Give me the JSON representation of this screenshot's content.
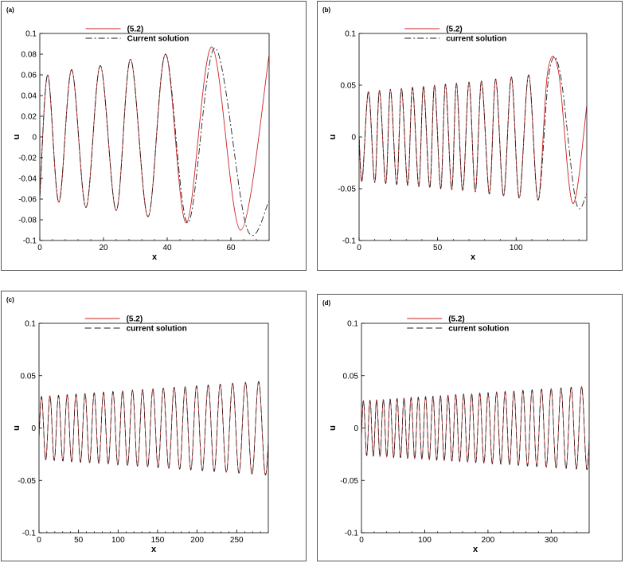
{
  "chart_data": [
    {
      "panel_label": "(a)",
      "type": "line",
      "xlabel": "x",
      "ylabel": "u",
      "xlim": [
        0,
        72
      ],
      "ylim": [
        -0.1,
        0.1
      ],
      "xticks": [
        "0",
        "20",
        "40",
        "60"
      ],
      "xtick_values": [
        0,
        20,
        40,
        60
      ],
      "yticks": [
        "0.1",
        "0.08",
        "0.06",
        "0.04",
        "0.02",
        "0",
        "-0.02",
        "-0.04",
        "-0.06",
        "-0.08",
        "-0.1"
      ],
      "ytick_values": [
        0.1,
        0.08,
        0.06,
        0.04,
        0.02,
        0,
        -0.02,
        -0.04,
        -0.06,
        -0.08,
        -0.1
      ],
      "legend_position": "top-center",
      "legend": [
        "(5.2)",
        "Current solution"
      ],
      "series": [
        {
          "name": "(5.2)",
          "color": "#cc2222",
          "style": "solid",
          "x": [
            0,
            2.5,
            6,
            10,
            14.5,
            19,
            24,
            28.5,
            34,
            39.5,
            46,
            54,
            63,
            72
          ],
          "y": [
            -0.058,
            0.06,
            -0.063,
            0.065,
            -0.068,
            0.069,
            -0.071,
            0.075,
            -0.077,
            0.08,
            -0.083,
            0.087,
            -0.09,
            0.079
          ]
        },
        {
          "name": "Current solution",
          "color": "#222222",
          "style": "dashdot",
          "x": [
            0,
            2.5,
            6,
            10,
            14.5,
            19,
            24,
            28.5,
            34,
            39.5,
            46.5,
            55,
            65,
            72
          ],
          "y": [
            -0.058,
            0.06,
            -0.063,
            0.065,
            -0.068,
            0.069,
            -0.071,
            0.075,
            -0.077,
            0.08,
            -0.083,
            0.086,
            -0.088,
            -0.062
          ]
        }
      ]
    },
    {
      "panel_label": "(b)",
      "type": "line",
      "xlabel": "x",
      "ylabel": "u",
      "xlim": [
        0,
        145
      ],
      "ylim": [
        -0.1,
        0.1
      ],
      "xticks": [
        "0",
        "50",
        "100"
      ],
      "xtick_values": [
        0,
        50,
        100
      ],
      "yticks": [
        "0.1",
        "0.05",
        "0",
        "-0.05",
        "-0.1"
      ],
      "ytick_values": [
        0.1,
        0.05,
        0,
        -0.05,
        -0.1
      ],
      "legend_position": "top-center",
      "legend": [
        "(5.2)",
        "current solution"
      ],
      "series": [
        {
          "name": "(5.2)",
          "color": "#cc2222",
          "style": "solid",
          "x": [
            0,
            2,
            6,
            10,
            13,
            17,
            20,
            24,
            27,
            31,
            34,
            38,
            41,
            45,
            48,
            52,
            55,
            59,
            62,
            66,
            70,
            74,
            78,
            83,
            87,
            92,
            97,
            102,
            108,
            114,
            120,
            127,
            136,
            145
          ],
          "y": [
            0.0,
            -0.042,
            0.044,
            -0.044,
            0.045,
            -0.045,
            0.046,
            -0.046,
            0.047,
            -0.047,
            0.048,
            -0.048,
            0.049,
            -0.049,
            0.05,
            -0.05,
            0.051,
            -0.051,
            0.052,
            -0.052,
            0.053,
            -0.053,
            0.054,
            -0.055,
            0.056,
            -0.057,
            0.058,
            -0.059,
            0.06,
            -0.061,
            0.062,
            0.063,
            -0.064,
            0.03
          ]
        },
        {
          "name": "current solution",
          "color": "#222222",
          "style": "dashdot",
          "x": [
            0,
            2,
            6,
            10,
            13,
            17,
            20,
            24,
            27,
            31,
            34,
            38,
            41,
            45,
            48,
            52,
            55,
            59,
            62,
            66,
            70,
            74,
            78,
            83,
            87,
            92,
            97,
            102,
            108,
            114,
            121,
            128,
            138,
            145
          ],
          "y": [
            0.0,
            -0.042,
            0.044,
            -0.044,
            0.045,
            -0.045,
            0.046,
            -0.046,
            0.047,
            -0.047,
            0.048,
            -0.048,
            0.049,
            -0.049,
            0.05,
            -0.05,
            0.051,
            -0.051,
            0.052,
            -0.052,
            0.053,
            -0.053,
            0.054,
            -0.055,
            0.056,
            -0.057,
            0.058,
            -0.059,
            0.06,
            -0.061,
            0.062,
            0.062,
            -0.062,
            -0.055
          ]
        }
      ]
    },
    {
      "panel_label": "(c)",
      "type": "line",
      "xlabel": "x",
      "ylabel": "u",
      "xlim": [
        0,
        290
      ],
      "ylim": [
        -0.1,
        0.1
      ],
      "xticks": [
        "0",
        "50",
        "100",
        "150",
        "200",
        "250"
      ],
      "xtick_values": [
        0,
        50,
        100,
        150,
        200,
        250
      ],
      "yticks": [
        "0.1",
        "0.05",
        "0",
        "-0.05",
        "-0.1"
      ],
      "ytick_values": [
        0.1,
        0.05,
        0,
        -0.05,
        -0.1
      ],
      "legend_position": "top-center",
      "legend": [
        "(5.2)",
        "current solution"
      ],
      "series": [
        {
          "name": "(5.2)",
          "color": "#cc2222",
          "style": "solid",
          "amp_start": 0.03,
          "amp_end": 0.045,
          "cycles": 22,
          "x_end": 290
        },
        {
          "name": "current solution",
          "color": "#222222",
          "style": "dashed",
          "amp_start": 0.03,
          "amp_end": 0.045,
          "cycles": 22,
          "x_end": 290
        }
      ]
    },
    {
      "panel_label": "(d)",
      "type": "line",
      "xlabel": "x",
      "ylabel": "u",
      "xlim": [
        0,
        360
      ],
      "ylim": [
        -0.1,
        0.1
      ],
      "xticks": [
        "0",
        "100",
        "200",
        "300"
      ],
      "xtick_values": [
        0,
        100,
        200,
        300
      ],
      "yticks": [
        "0.1",
        "0.05",
        "0",
        "-0.05",
        "-0.1"
      ],
      "ytick_values": [
        0.1,
        0.05,
        0,
        -0.05,
        -0.1
      ],
      "legend_position": "top-center",
      "legend": [
        "(5.2)",
        "current solution"
      ],
      "series": [
        {
          "name": "(5.2)",
          "color": "#cc2222",
          "style": "solid",
          "amp_start": 0.026,
          "amp_end": 0.04,
          "cycles": 28,
          "x_end": 360
        },
        {
          "name": "current solution",
          "color": "#222222",
          "style": "dashed",
          "amp_start": 0.026,
          "amp_end": 0.04,
          "cycles": 28,
          "x_end": 360
        }
      ]
    }
  ]
}
